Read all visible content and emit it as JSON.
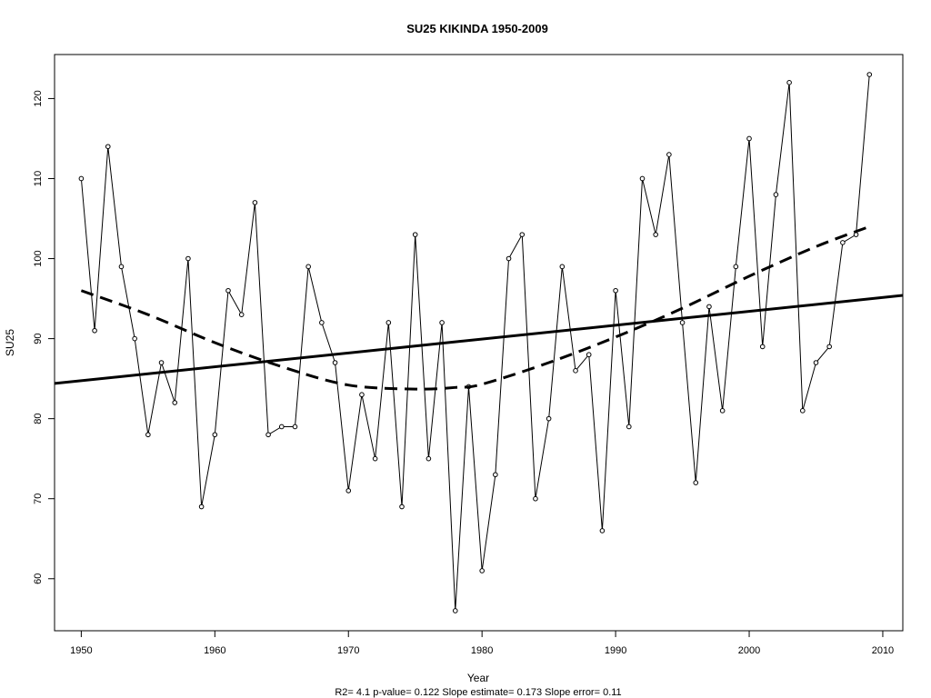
{
  "chart_data": {
    "type": "line",
    "title": "SU25   KIKINDA 1950-2009",
    "xlabel": "Year",
    "ylabel": "SU25",
    "footer": "R2= 4.1  p-value= 0.122  Slope estimate= 0.173  Slope error= 0.11",
    "xlim": [
      1948,
      2011.5
    ],
    "ylim": [
      53.5,
      125.5
    ],
    "x_ticks": [
      1950,
      1960,
      1970,
      1980,
      1990,
      2000,
      2010
    ],
    "y_ticks": [
      60,
      70,
      80,
      90,
      100,
      110,
      120
    ],
    "grid": false,
    "legend": "none",
    "series": [
      {
        "kind": "observed",
        "x": [
          1950,
          1951,
          1952,
          1953,
          1954,
          1955,
          1956,
          1957,
          1958,
          1959,
          1960,
          1961,
          1962,
          1963,
          1964,
          1965,
          1966,
          1967,
          1968,
          1969,
          1970,
          1971,
          1972,
          1973,
          1974,
          1975,
          1976,
          1977,
          1978,
          1979,
          1980,
          1981,
          1982,
          1983,
          1984,
          1985,
          1986,
          1987,
          1988,
          1989,
          1990,
          1991,
          1992,
          1993,
          1994,
          1995,
          1996,
          1997,
          1998,
          1999,
          2000,
          2001,
          2002,
          2003,
          2004,
          2005,
          2006,
          2007,
          2008,
          2009
        ],
        "values": [
          110,
          91,
          114,
          99,
          90,
          78,
          87,
          82,
          100,
          69,
          78,
          96,
          93,
          107,
          78,
          79,
          79,
          99,
          92,
          87,
          71,
          83,
          75,
          92,
          69,
          103,
          75,
          92,
          56,
          84,
          61,
          73,
          100,
          103,
          70,
          80,
          99,
          86,
          88,
          66,
          96,
          79,
          110,
          103,
          113,
          92,
          72,
          94,
          81,
          99,
          115,
          89,
          108,
          122,
          81,
          87,
          89,
          102,
          103,
          123
        ]
      },
      {
        "kind": "linear-trend",
        "x": [
          1948,
          2011.5
        ],
        "values": [
          84.4,
          95.4
        ]
      },
      {
        "kind": "smooth-trend",
        "x": [
          1950,
          1955,
          1960,
          1965,
          1970,
          1975,
          1978,
          1980,
          1985,
          1990,
          1995,
          2000,
          2005,
          2009
        ],
        "values": [
          96,
          93,
          89.5,
          86.5,
          84.2,
          83.7,
          83.9,
          84.3,
          87.0,
          90.2,
          93.8,
          97.8,
          101.5,
          104
        ]
      }
    ]
  }
}
